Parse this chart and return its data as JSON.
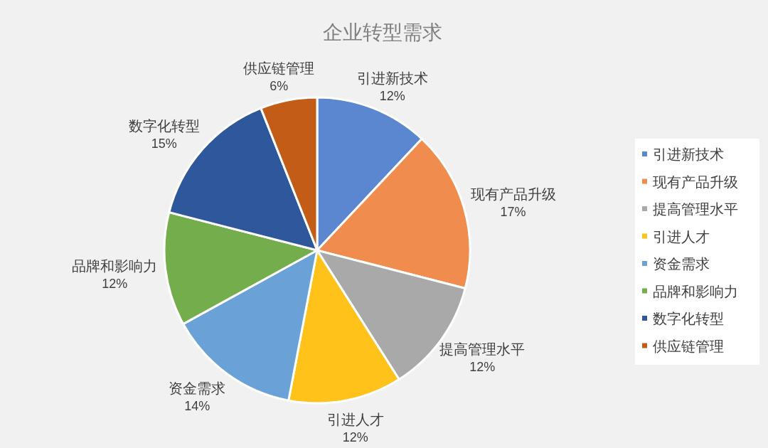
{
  "chart_data": {
    "type": "pie",
    "title": "企业转型需求",
    "categories": [
      "引进新技术",
      "现有产品升级",
      "提高管理水平",
      "引进人才",
      "资金需求",
      "品牌和影响力",
      "数字化转型",
      "供应链管理"
    ],
    "values": [
      12,
      17,
      12,
      12,
      14,
      12,
      15,
      6
    ],
    "value_labels": [
      "12%",
      "17%",
      "12%",
      "12%",
      "14%",
      "12%",
      "15%",
      "6%"
    ],
    "colors": [
      "#5b86d0",
      "#f08c4e",
      "#a9a9a9",
      "#fec21a",
      "#6aa2d8",
      "#74ae4c",
      "#2e579c",
      "#c25c16"
    ],
    "legend": "right"
  }
}
